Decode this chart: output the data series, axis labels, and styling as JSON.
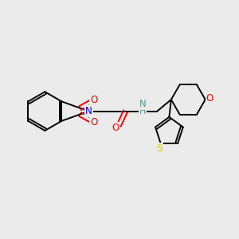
{
  "background_color": "#ebebeb",
  "bond_color": "#000000",
  "atom_colors": {
    "N_blue": "#0000ff",
    "NH_teal": "#4d9999",
    "O_red": "#ff0000",
    "S_yellow": "#cccc00"
  },
  "figsize": [
    3.0,
    3.0
  ],
  "dpi": 100,
  "xlim": [
    0,
    10
  ],
  "ylim": [
    0,
    10
  ],
  "lw": 1.4,
  "font_size": 8.5
}
